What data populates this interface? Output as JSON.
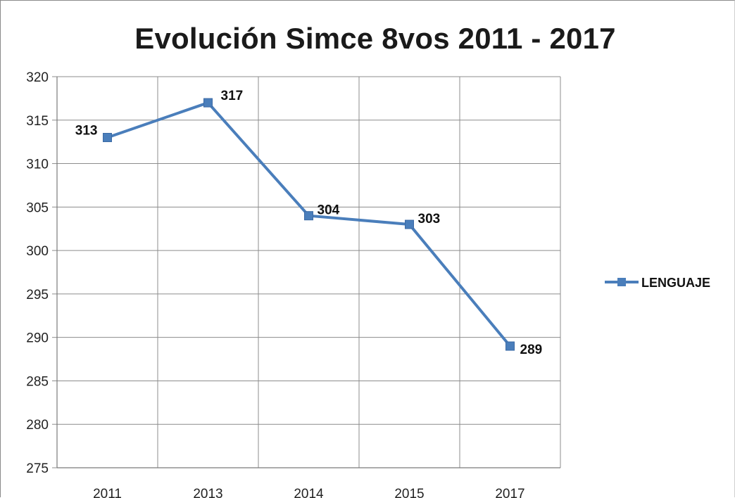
{
  "chart_data": {
    "type": "line",
    "title": "Evolución Simce 8vos 2011 - 2017",
    "categories": [
      "2011",
      "2013",
      "2014",
      "2015",
      "2017"
    ],
    "series": [
      {
        "name": "LENGUAJE",
        "values": [
          313,
          317,
          304,
          303,
          289
        ],
        "color": "#4a7ebb"
      }
    ],
    "data_labels": [
      "313",
      "317",
      "304",
      "303",
      "289"
    ],
    "ylim": [
      275,
      320
    ],
    "y_ticks": [
      275,
      280,
      285,
      290,
      295,
      300,
      305,
      310,
      315,
      320
    ],
    "grid": true,
    "legend_position": "right",
    "xlabel": "",
    "ylabel": ""
  }
}
